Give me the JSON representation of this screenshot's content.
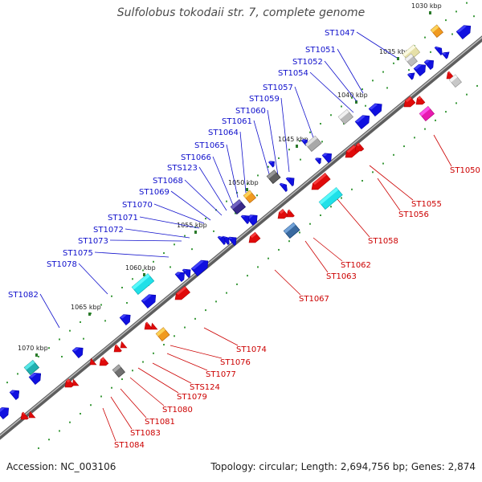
{
  "title": "Sulfolobus tokodaii str. 7, complete genome",
  "footer": {
    "accession": "Accession: NC_003106",
    "topology": "Topology: circular; Length: 2,694,756 bp; Genes: 2,874"
  },
  "colors": {
    "forward": "#1010e0",
    "reverse": "#e00a0a",
    "backbone": "#777777",
    "label_forward": "#1010cc",
    "label_reverse": "#cc0000",
    "tick": "#2a8a2a"
  },
  "scale_marks": [
    {
      "label": "1030 kbp",
      "kbp": 1030
    },
    {
      "label": "1035 kbp",
      "kbp": 1035
    },
    {
      "label": "1040 kbp",
      "kbp": 1040
    },
    {
      "label": "1045 kbp",
      "kbp": 1045
    },
    {
      "label": "1050 kbp",
      "kbp": 1050
    },
    {
      "label": "1055 kbp",
      "kbp": 1055
    },
    {
      "label": "1060 kbp",
      "kbp": 1060
    },
    {
      "label": "1065 kbp",
      "kbp": 1065
    },
    {
      "label": "1070 kbp",
      "kbp": 1070
    }
  ],
  "forward_labels": [
    "ST1047",
    "ST1051",
    "ST1052",
    "ST1054",
    "ST1057",
    "ST1059",
    "ST1060",
    "ST1061",
    "ST1064",
    "ST1065",
    "ST1066",
    "STS123",
    "ST1068",
    "ST1069",
    "ST1070",
    "ST1071",
    "ST1072",
    "ST1073",
    "ST1075",
    "ST1078",
    "ST1082"
  ],
  "reverse_labels": [
    "ST1050",
    "ST1055",
    "ST1056",
    "ST1058",
    "ST1062",
    "ST1063",
    "ST1067",
    "ST1074",
    "ST1076",
    "ST1077",
    "STS124",
    "ST1079",
    "ST1080",
    "ST1081",
    "ST1083",
    "ST1084"
  ]
}
